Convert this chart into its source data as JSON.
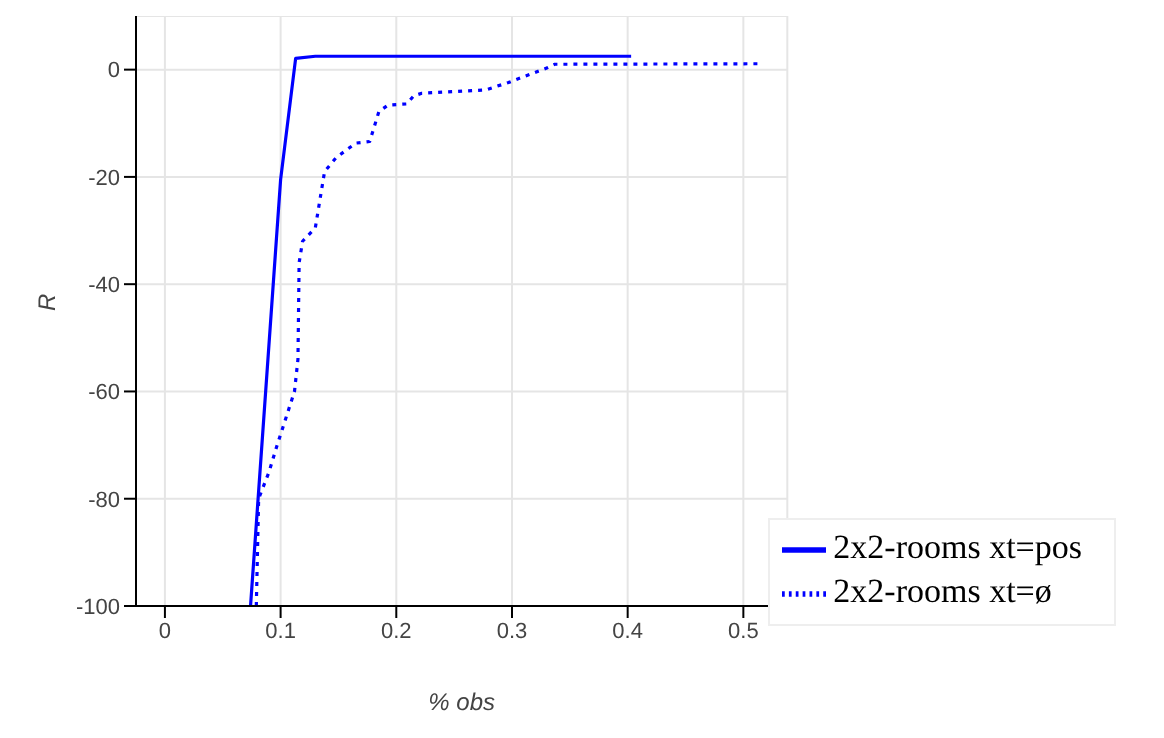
{
  "chart_data": {
    "type": "line",
    "xlabel": "% obs",
    "ylabel": "R",
    "xlim": [
      -0.025,
      0.538
    ],
    "ylim": [
      -100,
      10
    ],
    "xticks": [
      0,
      0.1,
      0.2,
      0.3,
      0.4,
      0.5
    ],
    "yticks": [
      -100,
      -80,
      -60,
      -40,
      -20,
      0
    ],
    "grid": true,
    "legend": "bottom right",
    "marker": "none",
    "series": [
      {
        "name": "2x2-rooms xt=pos",
        "color": "#0000ff",
        "line_style": "solid",
        "x": [
          0.074,
          0.1,
          0.113,
          0.13,
          0.403
        ],
        "values": [
          -100,
          -20.5,
          2.1,
          2.5,
          2.5
        ]
      },
      {
        "name": "2x2-rooms xt=ø",
        "color": "#0000ff",
        "line_style": "dotted",
        "x": [
          0.079,
          0.081,
          0.09,
          0.097,
          0.112,
          0.115,
          0.116,
          0.119,
          0.13,
          0.138,
          0.148,
          0.165,
          0.177,
          0.185,
          0.193,
          0.209,
          0.215,
          0.222,
          0.277,
          0.297,
          0.33,
          0.337,
          0.513
        ],
        "values": [
          -100,
          -80,
          -75,
          -70,
          -60,
          -54,
          -36,
          -32,
          -29.5,
          -19,
          -16.4,
          -13.7,
          -13.4,
          -7.8,
          -6.6,
          -6.4,
          -4.9,
          -4.4,
          -3.8,
          -2.4,
          0.3,
          1,
          1.1
        ]
      }
    ]
  }
}
